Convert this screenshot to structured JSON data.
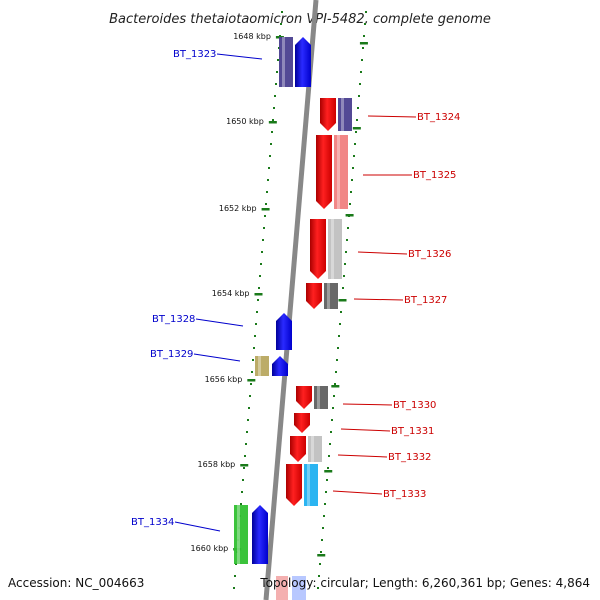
{
  "title": "Bacteroides thetaiotaomicron VPI-5482, complete genome",
  "footer": {
    "accession": "Accession: NC_004663",
    "summary": "Topology: circular; Length: 6,260,361 bp; Genes: 4,864"
  },
  "colors": {
    "forward_strand": "#0000ee",
    "reverse_strand": "#ee0000",
    "backbone": "#888888",
    "ticks": "#1a7a1a",
    "forward_label": "#0000cc",
    "reverse_label": "#cc0000"
  },
  "scale": {
    "unit": "kbp",
    "ticks": [
      {
        "label": "1648 kbp"
      },
      {
        "label": "1650 kbp"
      },
      {
        "label": "1652 kbp"
      },
      {
        "label": "1654 kbp"
      },
      {
        "label": "1656 kbp"
      },
      {
        "label": "1658 kbp"
      },
      {
        "label": "1660 kbp"
      }
    ]
  },
  "genes": [
    {
      "id": "BT_1323",
      "strand": "forward",
      "category_color": "#4a3f8f"
    },
    {
      "id": "BT_1324",
      "strand": "reverse",
      "category_color": "#4a3f8f"
    },
    {
      "id": "BT_1325",
      "strand": "reverse",
      "category_color": "#f08080"
    },
    {
      "id": "BT_1326",
      "strand": "reverse",
      "category_color": "#c0c0c0"
    },
    {
      "id": "BT_1327",
      "strand": "reverse",
      "category_color": "#606060"
    },
    {
      "id": "BT_1328",
      "strand": "forward",
      "category_color": null
    },
    {
      "id": "BT_1329",
      "strand": "forward",
      "category_color": "#b8a860"
    },
    {
      "id": "BT_1330",
      "strand": "reverse",
      "category_color": "#606060"
    },
    {
      "id": "BT_1331",
      "strand": "reverse",
      "category_color": null
    },
    {
      "id": "BT_1332",
      "strand": "reverse",
      "category_color": "#c0c0c0"
    },
    {
      "id": "BT_1333",
      "strand": "reverse",
      "category_color": "#20b0f0"
    },
    {
      "id": "BT_1334",
      "strand": "forward",
      "category_color": "#30c030"
    }
  ]
}
